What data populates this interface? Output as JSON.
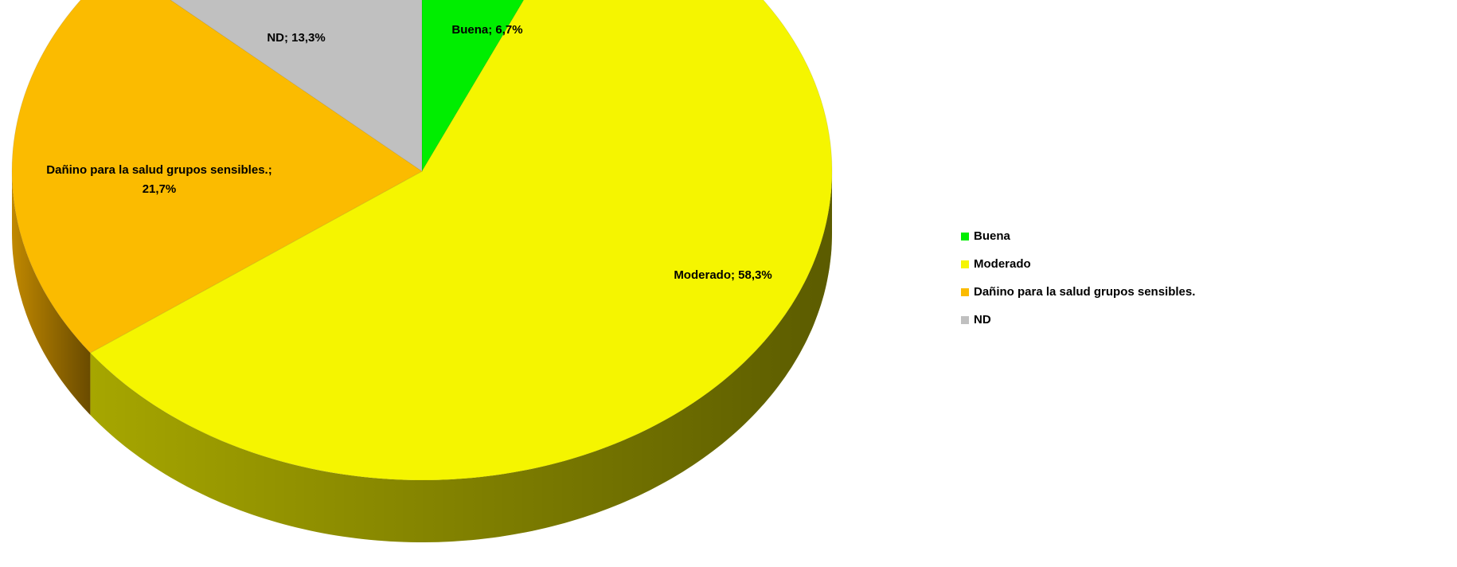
{
  "chart_data": {
    "type": "pie",
    "style": "3d",
    "categories": [
      "Buena",
      "Moderado",
      "Dañino para la salud grupos sensibles.",
      "ND"
    ],
    "values": [
      6.7,
      58.3,
      21.7,
      13.3
    ],
    "value_unit": "%",
    "data_labels": [
      "Buena; 6,7%",
      "Moderado; 58,3%",
      "Dañino para la salud grupos sensibles.; 21,7%",
      "ND; 13,3%"
    ],
    "colors": [
      "#00ee00",
      "#f5f500",
      "#fbbb00",
      "#c0c0c0"
    ],
    "side_colors": [
      "#00a000",
      "#a6a600",
      "#c08800",
      "#8c8c8c"
    ],
    "legend": {
      "position": "right",
      "entries": [
        "Buena",
        "Moderado",
        "Dañino para la salud grupos sensibles.",
        "ND"
      ]
    },
    "title": ""
  }
}
